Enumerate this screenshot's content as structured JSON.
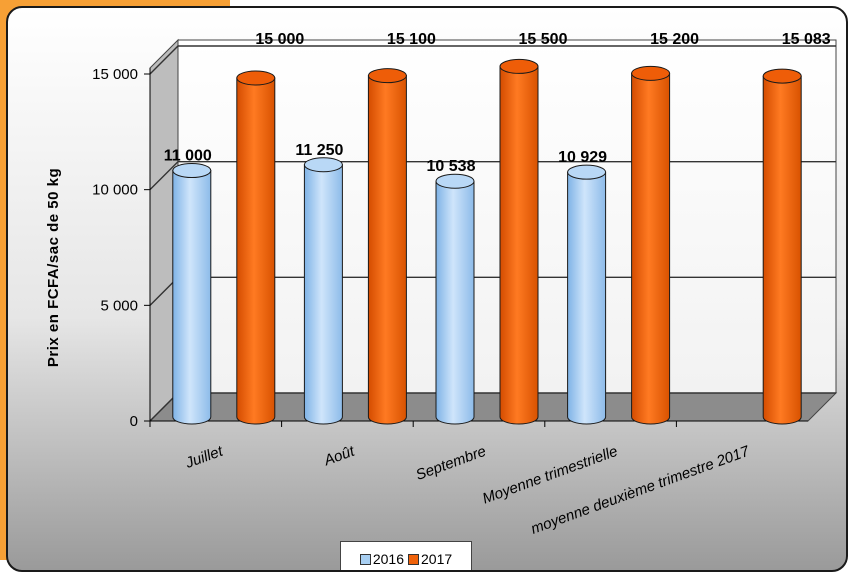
{
  "chart_data": {
    "type": "bar",
    "style": "3d-cylinder",
    "title": "",
    "xlabel": "",
    "ylabel": "Prix en FCFA/sac de 50 kg",
    "ylim": [
      0,
      15000
    ],
    "yticks": [
      "0",
      "5 000",
      "10 000",
      "15 000"
    ],
    "grid": true,
    "legend_position": "bottom",
    "categories": [
      "Juillet",
      "Août",
      "Septembre",
      "Moyenne trimestrielle",
      "moyenne deuxième trimestre 2017"
    ],
    "series": [
      {
        "name": "2016",
        "color": "#a8cff2",
        "values": [
          11000,
          11250,
          10538,
          10929,
          null
        ],
        "labels": [
          "11 000",
          "11 250",
          "10 538",
          "10 929",
          ""
        ]
      },
      {
        "name": "2017",
        "color": "#f0620a",
        "values": [
          15000,
          15100,
          15500,
          15200,
          15083
        ],
        "labels": [
          "15 000",
          "15 100",
          "15 500",
          "15 200",
          "15 083"
        ]
      }
    ]
  }
}
